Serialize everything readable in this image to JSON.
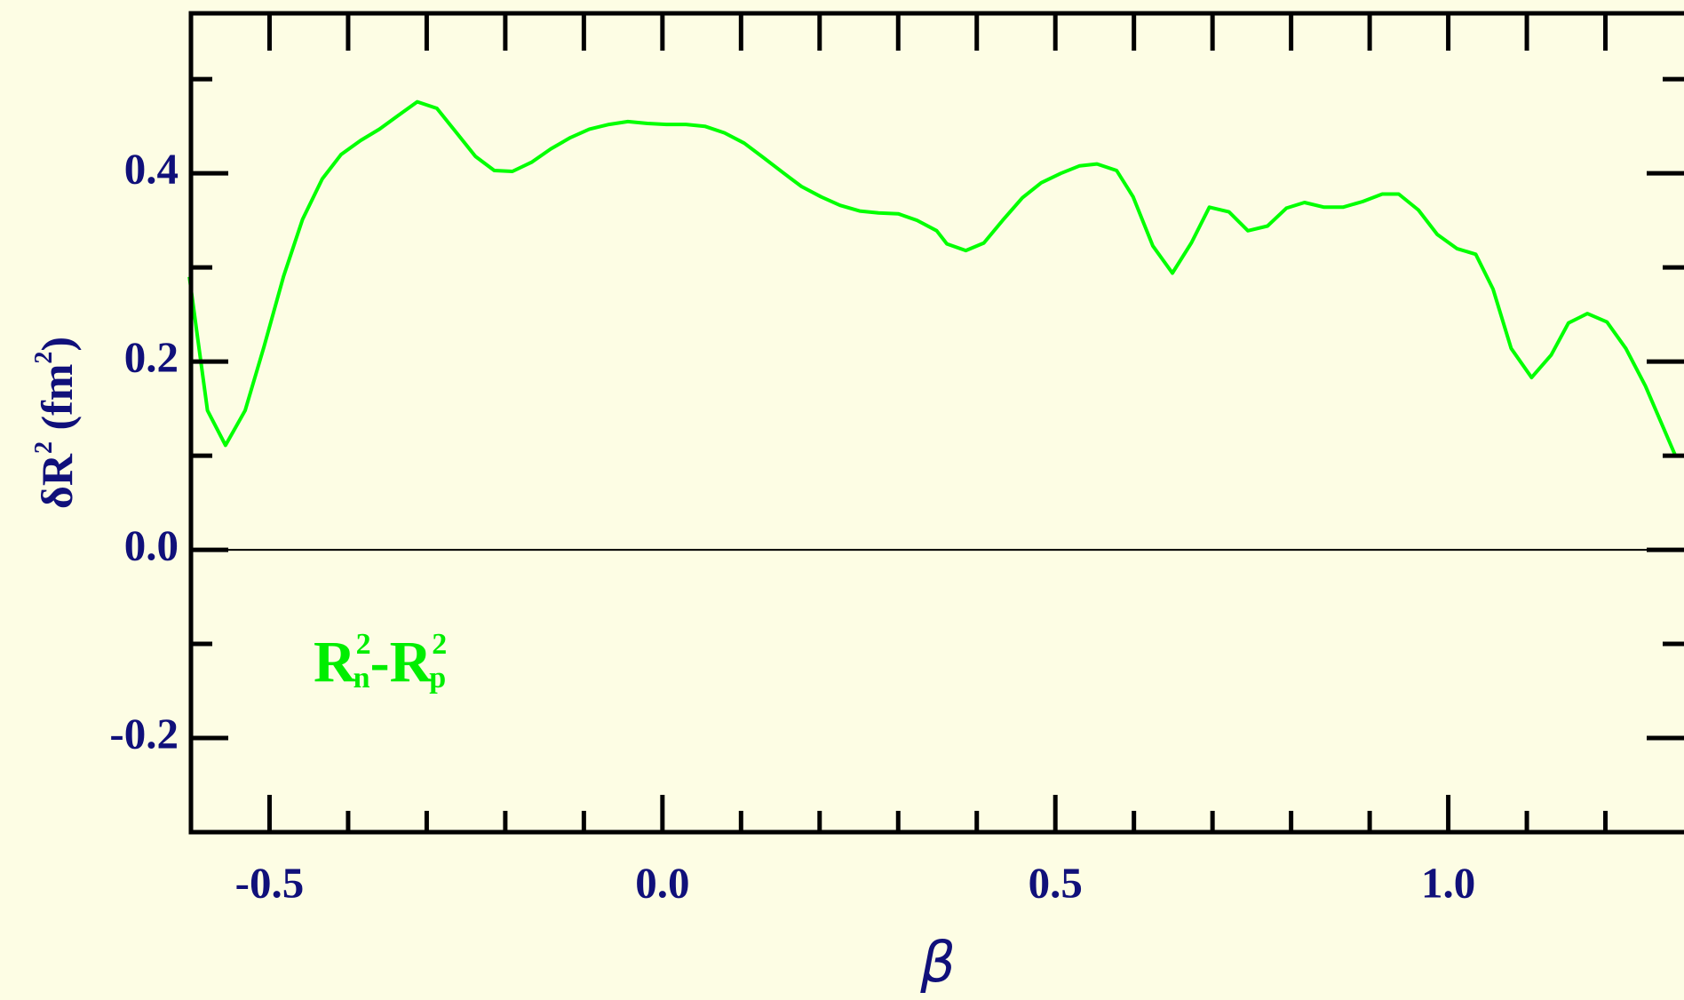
{
  "chart_data": {
    "type": "line",
    "ylabel": [
      "δR",
      "2",
      " (fm",
      "2",
      ")"
    ],
    "xlabel": "β",
    "annotation": [
      "R",
      "2",
      "n",
      "-R",
      "2",
      "p"
    ],
    "xlim": [
      -0.6,
      1.3
    ],
    "ylim": [
      -0.3,
      0.57
    ],
    "xticks": [
      -0.5,
      {
        "value": 0,
        "label": "0.0"
      },
      0.5,
      {
        "value": 1,
        "label": "1.0"
      }
    ],
    "yticks": [
      -0.2,
      {
        "value": 0,
        "label": "0.0"
      },
      0.2,
      0.4
    ],
    "xminorticks": [
      -0.4,
      -0.3,
      -0.2,
      -0.1,
      0.1,
      0.2,
      0.3,
      0.4,
      0.6,
      0.7,
      0.8,
      0.9,
      1.1,
      1.2
    ],
    "yminorticks": [
      -0.1,
      0.1,
      0.3,
      0.5
    ],
    "zero_line": true,
    "series": [
      {
        "color": "#00ff00",
        "x": [
          -0.602,
          -0.579,
          -0.556,
          -0.531,
          -0.507,
          -0.482,
          -0.458,
          -0.433,
          -0.409,
          -0.384,
          -0.36,
          -0.337,
          -0.312,
          -0.287,
          -0.263,
          -0.238,
          -0.214,
          -0.191,
          -0.166,
          -0.142,
          -0.117,
          -0.093,
          -0.068,
          -0.044,
          -0.019,
          0.005,
          0.03,
          0.054,
          0.079,
          0.104,
          0.128,
          0.153,
          0.177,
          0.202,
          0.226,
          0.251,
          0.275,
          0.3,
          0.324,
          0.349,
          0.362,
          0.386,
          0.409,
          0.433,
          0.458,
          0.482,
          0.507,
          0.531,
          0.553,
          0.578,
          0.599,
          0.624,
          0.649,
          0.673,
          0.696,
          0.721,
          0.745,
          0.77,
          0.794,
          0.817,
          0.842,
          0.866,
          0.891,
          0.916,
          0.937,
          0.962,
          0.986,
          1.011,
          1.035,
          1.057,
          1.08,
          1.106,
          1.131,
          1.153,
          1.177,
          1.202,
          1.226,
          1.251,
          1.289
        ],
        "values": [
          0.29,
          0.148,
          0.111,
          0.148,
          0.216,
          0.291,
          0.351,
          0.394,
          0.42,
          0.435,
          0.447,
          0.461,
          0.476,
          0.469,
          0.444,
          0.418,
          0.403,
          0.402,
          0.412,
          0.426,
          0.438,
          0.447,
          0.452,
          0.455,
          0.453,
          0.452,
          0.452,
          0.45,
          0.443,
          0.432,
          0.417,
          0.401,
          0.386,
          0.375,
          0.366,
          0.36,
          0.358,
          0.357,
          0.35,
          0.339,
          0.325,
          0.318,
          0.326,
          0.35,
          0.374,
          0.39,
          0.4,
          0.408,
          0.41,
          0.403,
          0.375,
          0.323,
          0.294,
          0.326,
          0.364,
          0.359,
          0.339,
          0.344,
          0.363,
          0.369,
          0.364,
          0.364,
          0.37,
          0.378,
          0.378,
          0.361,
          0.335,
          0.32,
          0.314,
          0.277,
          0.214,
          0.183,
          0.207,
          0.241,
          0.251,
          0.242,
          0.214,
          0.174,
          0.1
        ]
      }
    ]
  }
}
